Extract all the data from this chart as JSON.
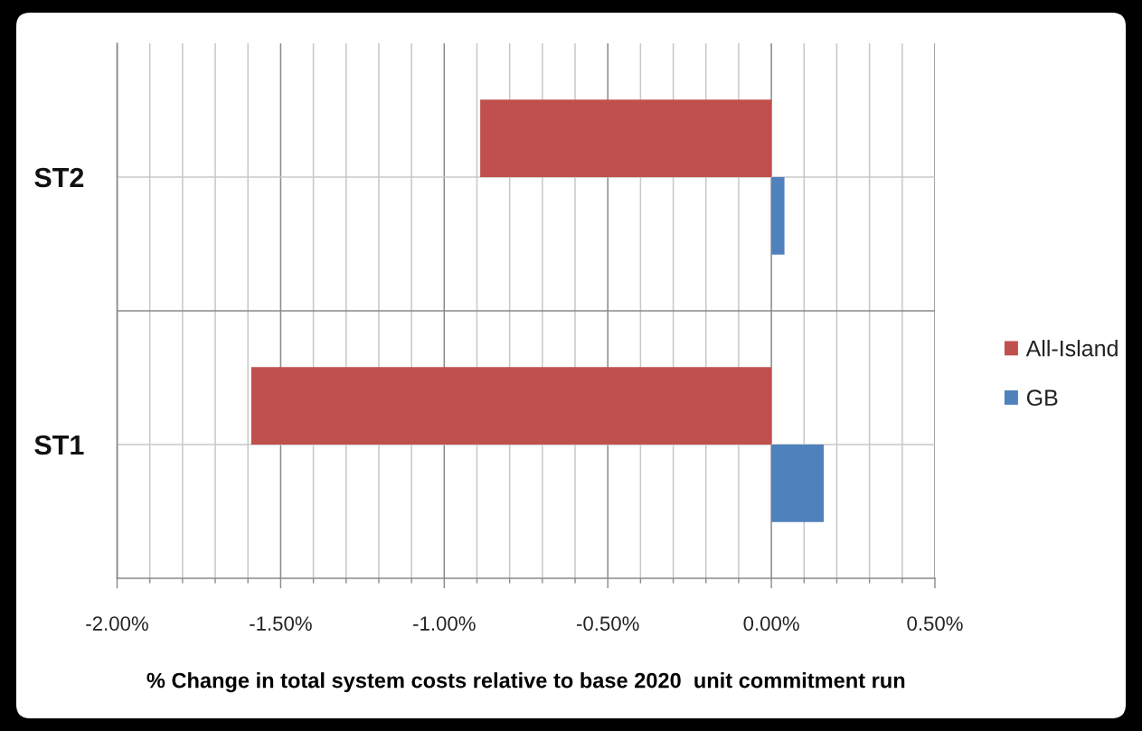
{
  "chart_data": {
    "type": "bar",
    "orientation": "horizontal",
    "categories": [
      "ST2",
      "ST1"
    ],
    "series": [
      {
        "name": "All-Island",
        "color": "#c0504d",
        "values": [
          -0.89,
          -1.59
        ]
      },
      {
        "name": "GB",
        "color": "#4f81bd",
        "values": [
          0.04,
          0.16
        ]
      }
    ],
    "xlabel": "% Change in total system costs relative to base 2020  unit commitment run",
    "xlim": [
      -2,
      0.5
    ],
    "xticks": [
      {
        "value": -2,
        "label": "-2.00%"
      },
      {
        "value": -1.9,
        "label": null
      },
      {
        "value": -1.8,
        "label": null
      },
      {
        "value": -1.7,
        "label": null
      },
      {
        "value": -1.6,
        "label": null
      },
      {
        "value": -1.5,
        "label": "-1.50%"
      },
      {
        "value": -1.4,
        "label": null
      },
      {
        "value": -1.3,
        "label": null
      },
      {
        "value": -1.2,
        "label": null
      },
      {
        "value": -1.1,
        "label": null
      },
      {
        "value": -1,
        "label": "-1.00%"
      },
      {
        "value": -0.9,
        "label": null
      },
      {
        "value": -0.8,
        "label": null
      },
      {
        "value": -0.7,
        "label": null
      },
      {
        "value": -0.6,
        "label": null
      },
      {
        "value": -0.5,
        "label": "-0.50%"
      },
      {
        "value": -0.4,
        "label": null
      },
      {
        "value": -0.3,
        "label": null
      },
      {
        "value": -0.2,
        "label": null
      },
      {
        "value": -0.1,
        "label": null
      },
      {
        "value": 0,
        "label": "0.00%"
      },
      {
        "value": 0.1,
        "label": null
      },
      {
        "value": 0.2,
        "label": null
      },
      {
        "value": 0.3,
        "label": null
      },
      {
        "value": 0.4,
        "label": null
      },
      {
        "value": 0.5,
        "label": "0.50%"
      }
    ],
    "grid": true,
    "legend": "right"
  }
}
